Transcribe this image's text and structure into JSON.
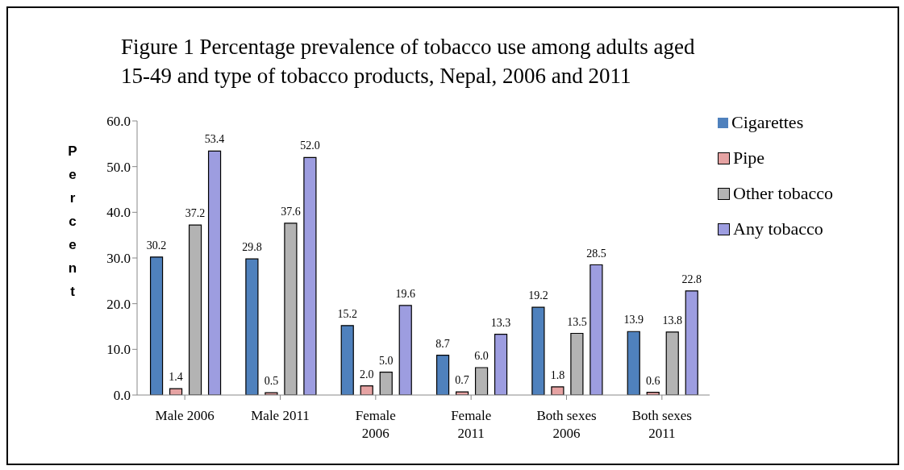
{
  "chart_data": {
    "type": "bar",
    "title": "Figure 1 Percentage prevalence of tobacco use among adults aged 15-49 and type of tobacco products, Nepal, 2006 and 2011",
    "ylabel": "Percent",
    "categories": [
      "Male 2006",
      "Male 2011",
      "Female 2006",
      "Female 2011",
      "Both sexes 2006",
      "Both sexes 2011"
    ],
    "series": [
      {
        "name": "Cigarettes",
        "color": "#4f81bd",
        "values": [
          30.2,
          29.8,
          15.2,
          8.7,
          19.2,
          13.9
        ],
        "value_labels": [
          "30.2",
          "29.8",
          "15.2",
          "8.7",
          "19.2",
          "13.9"
        ]
      },
      {
        "name": "Pipe",
        "color": "#e6a3a3",
        "values": [
          1.4,
          0.5,
          2.0,
          0.7,
          1.8,
          0.6
        ],
        "value_labels": [
          "1.4",
          "0.5",
          "2.0",
          "0.7",
          "1.8",
          "0.6"
        ]
      },
      {
        "name": "Other tobacco",
        "color": "#b3b3b3",
        "values": [
          37.2,
          37.6,
          5.0,
          6.0,
          13.5,
          13.8
        ],
        "value_labels": [
          "37.2",
          "37.6",
          "5.0",
          "6.0",
          "13.5",
          "13.8"
        ]
      },
      {
        "name": "Any tobacco",
        "color": "#9d9de0",
        "values": [
          53.4,
          52.0,
          19.6,
          13.3,
          28.5,
          22.8
        ],
        "value_labels": [
          "53.4",
          "52.0",
          "19.6",
          "13.3",
          "28.5",
          "22.8"
        ]
      }
    ],
    "ylim": [
      0,
      60
    ],
    "yticks": [
      {
        "value": 0,
        "label": "0.0"
      },
      {
        "value": 10,
        "label": "10.0"
      },
      {
        "value": 20,
        "label": "20.0"
      },
      {
        "value": 30,
        "label": "30.0"
      },
      {
        "value": 40,
        "label": "40.0"
      },
      {
        "value": 50,
        "label": "50.0"
      },
      {
        "value": 60,
        "label": "60.0"
      }
    ],
    "grid": false,
    "legend": "top right"
  }
}
